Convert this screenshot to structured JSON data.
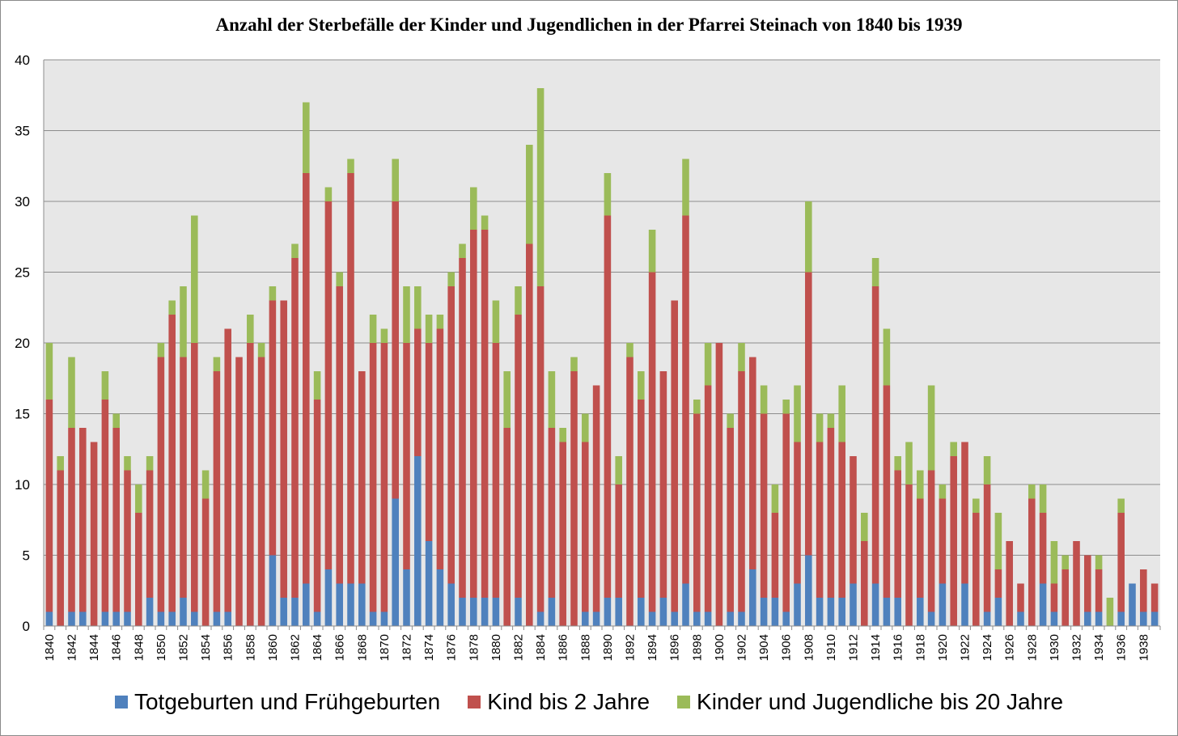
{
  "chart_data": {
    "type": "bar",
    "stacked": true,
    "title": "Anzahl der Sterbefälle der Kinder und Jugendlichen in der Pfarrei Steinach von 1840 bis 1939",
    "xlabel": "",
    "ylabel": "",
    "ylim": [
      0,
      40
    ],
    "yticks": [
      0,
      5,
      10,
      15,
      20,
      25,
      30,
      35,
      40
    ],
    "grid": true,
    "legend_position": "bottom",
    "categories": [
      1840,
      1841,
      1842,
      1843,
      1844,
      1845,
      1846,
      1847,
      1848,
      1849,
      1850,
      1851,
      1852,
      1853,
      1854,
      1855,
      1856,
      1857,
      1858,
      1859,
      1860,
      1861,
      1862,
      1863,
      1864,
      1865,
      1866,
      1867,
      1868,
      1869,
      1870,
      1871,
      1872,
      1873,
      1874,
      1875,
      1876,
      1877,
      1878,
      1879,
      1880,
      1881,
      1882,
      1883,
      1884,
      1885,
      1886,
      1887,
      1888,
      1889,
      1890,
      1891,
      1892,
      1893,
      1894,
      1895,
      1896,
      1897,
      1898,
      1899,
      1900,
      1901,
      1902,
      1903,
      1904,
      1905,
      1906,
      1907,
      1908,
      1909,
      1910,
      1911,
      1912,
      1913,
      1914,
      1915,
      1916,
      1917,
      1918,
      1919,
      1920,
      1921,
      1922,
      1923,
      1924,
      1925,
      1926,
      1927,
      1928,
      1929,
      1930,
      1931,
      1932,
      1933,
      1934,
      1935,
      1936,
      1937,
      1938,
      1939
    ],
    "xtick_labels": [
      "1840",
      "1842",
      "1844",
      "1846",
      "1848",
      "1850",
      "1852",
      "1854",
      "1856",
      "1858",
      "1860",
      "1862",
      "1864",
      "1866",
      "1868",
      "1870",
      "1872",
      "1874",
      "1876",
      "1878",
      "1880",
      "1882",
      "1884",
      "1886",
      "1888",
      "1890",
      "1892",
      "1894",
      "1896",
      "1898",
      "1900",
      "1902",
      "1904",
      "1906",
      "1908",
      "1910",
      "1912",
      "1914",
      "1916",
      "1918",
      "1920",
      "1922",
      "1924",
      "1926",
      "1928",
      "1930",
      "1932",
      "1934",
      "1936",
      "1938"
    ],
    "series": [
      {
        "name": "Totgeburten und Frühgeburten",
        "color": "#4f81bd",
        "values": [
          1,
          0,
          1,
          1,
          0,
          1,
          1,
          1,
          0,
          2,
          1,
          1,
          2,
          1,
          0,
          1,
          1,
          0,
          0,
          0,
          5,
          2,
          2,
          3,
          1,
          4,
          3,
          3,
          3,
          1,
          1,
          9,
          4,
          12,
          6,
          4,
          3,
          2,
          2,
          2,
          2,
          0,
          2,
          0,
          1,
          2,
          0,
          0,
          1,
          1,
          2,
          2,
          0,
          2,
          1,
          2,
          1,
          3,
          1,
          1,
          0,
          1,
          1,
          4,
          2,
          2,
          1,
          3,
          5,
          2,
          2,
          2,
          3,
          0,
          3,
          2,
          2,
          0,
          2,
          1,
          3,
          0,
          3,
          0,
          1,
          2,
          0,
          1,
          0,
          3,
          1,
          0,
          0,
          1,
          1,
          0,
          1,
          3,
          1,
          1
        ]
      },
      {
        "name": "Kind bis 2 Jahre",
        "color": "#c0504d",
        "values": [
          15,
          11,
          13,
          13,
          13,
          15,
          13,
          10,
          8,
          9,
          18,
          21,
          17,
          19,
          9,
          17,
          20,
          19,
          20,
          19,
          18,
          21,
          24,
          29,
          15,
          26,
          21,
          29,
          15,
          19,
          19,
          21,
          16,
          9,
          14,
          17,
          21,
          24,
          26,
          26,
          18,
          14,
          20,
          27,
          23,
          12,
          13,
          18,
          12,
          16,
          27,
          8,
          19,
          14,
          24,
          16,
          22,
          26,
          14,
          16,
          20,
          13,
          17,
          15,
          13,
          6,
          14,
          10,
          20,
          11,
          12,
          11,
          9,
          6,
          21,
          15,
          9,
          10,
          7,
          10,
          6,
          12,
          10,
          8,
          9,
          2,
          6,
          2,
          9,
          5,
          2,
          4,
          6,
          4,
          3,
          0,
          7,
          0,
          3,
          2
        ]
      },
      {
        "name": "Kinder und Jugendliche bis 20 Jahre",
        "color": "#9bbb59",
        "values": [
          4,
          1,
          5,
          0,
          0,
          2,
          1,
          1,
          2,
          1,
          1,
          1,
          5,
          9,
          2,
          1,
          0,
          0,
          2,
          1,
          1,
          0,
          1,
          5,
          2,
          1,
          1,
          1,
          0,
          2,
          1,
          3,
          4,
          3,
          2,
          1,
          1,
          1,
          3,
          1,
          3,
          4,
          2,
          7,
          14,
          4,
          1,
          1,
          2,
          0,
          3,
          2,
          1,
          2,
          3,
          0,
          0,
          4,
          1,
          3,
          0,
          1,
          2,
          0,
          2,
          2,
          1,
          4,
          5,
          2,
          1,
          4,
          0,
          2,
          2,
          4,
          1,
          3,
          2,
          6,
          1,
          1,
          0,
          1,
          2,
          4,
          0,
          0,
          1,
          2,
          3,
          1,
          0,
          0,
          1,
          2,
          1,
          0,
          0,
          0
        ]
      }
    ]
  }
}
